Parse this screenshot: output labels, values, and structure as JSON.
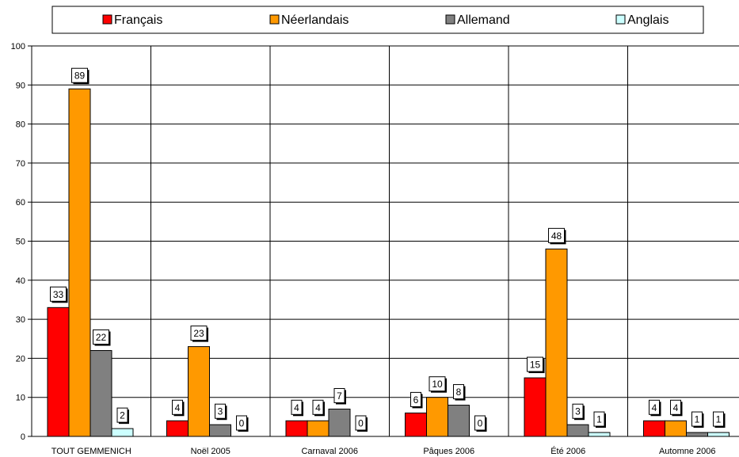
{
  "chart_data": {
    "type": "bar",
    "categories": [
      "TOUT GEMMENICH",
      "Noël 2005",
      "Carnaval 2006",
      "Pâques 2006",
      "Été 2006",
      "Automne 2006"
    ],
    "series": [
      {
        "name": "Français",
        "color": "#ff0000",
        "values": [
          33,
          4,
          4,
          6,
          15,
          4
        ]
      },
      {
        "name": "Néerlandais",
        "color": "#ff9900",
        "values": [
          89,
          23,
          4,
          10,
          48,
          4
        ]
      },
      {
        "name": "Allemand",
        "color": "#808080",
        "values": [
          22,
          3,
          7,
          8,
          3,
          1
        ]
      },
      {
        "name": "Anglais",
        "color": "#ccffff",
        "values": [
          2,
          0,
          0,
          0,
          1,
          1
        ]
      }
    ],
    "ylim": [
      0,
      100
    ],
    "yticks": [
      0,
      10,
      20,
      30,
      40,
      50,
      60,
      70,
      80,
      90,
      100
    ],
    "grid": true,
    "legend": "top"
  }
}
